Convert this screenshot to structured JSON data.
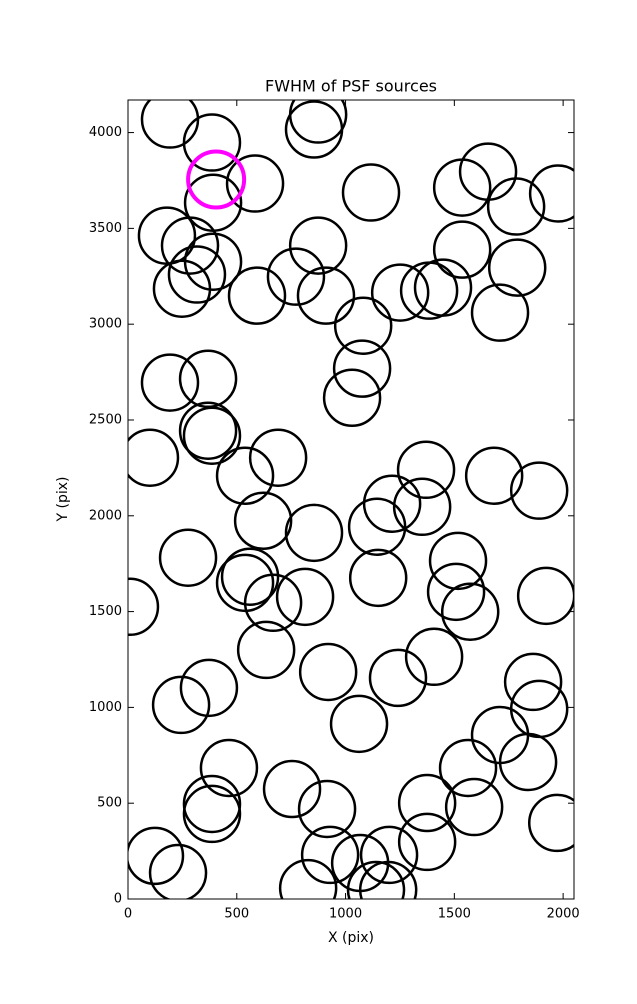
{
  "chart_data": {
    "type": "scatter",
    "title": "FWHM of PSF sources",
    "x_label": "X (pix)",
    "y_label": "Y (pix)",
    "xlim": [
      0,
      2050
    ],
    "ylim": [
      0,
      4170
    ],
    "xticks": [
      0,
      500,
      1000,
      1500,
      2000
    ],
    "yticks": [
      0,
      500,
      1000,
      1500,
      2000,
      2500,
      3000,
      3500,
      4000
    ],
    "series": [
      {
        "color": "#000000",
        "x": [
          193,
          386,
          874,
          855,
          391,
          584,
          1117,
          1536,
          1655,
          1784,
          1977,
          179,
          285,
          391,
          874,
          1536,
          1789,
          317,
          248,
          772,
          593,
          910,
          1251,
          1384,
          1448,
          1710,
          1081,
          193,
          368,
          1076,
          1030,
          368,
          386,
          101,
          690,
          538,
          1370,
          1683,
          1890,
          1214,
          1352,
          621,
          855,
          1145,
          276,
          1517,
          561,
          538,
          814,
          1150,
          1508,
          1573,
          9,
          667,
          1922,
          635,
          920,
          1407,
          1241,
          372,
          244,
          1862,
          1890,
          1062,
          1710,
          1839,
          464,
          1563,
          754,
          915,
          386,
          386,
          1375,
          1591,
          1973,
          124,
          230,
          929,
          1067,
          1200,
          1375,
          828,
          1140,
          1196
        ],
        "values": [
          4068,
          3948,
          4094,
          4016,
          3634,
          3734,
          3687,
          3713,
          3796,
          3614,
          3682,
          3462,
          3410,
          3326,
          3410,
          3389,
          3295,
          3259,
          3185,
          3248,
          3149,
          3149,
          3165,
          3175,
          3191,
          3060,
          2992,
          2695,
          2715,
          2768,
          2616,
          2444,
          2418,
          2303,
          2303,
          2209,
          2240,
          2209,
          2131,
          2063,
          2047,
          1974,
          1911,
          1943,
          1781,
          1765,
          1682,
          1650,
          1577,
          1676,
          1603,
          1499,
          1525,
          1546,
          1582,
          1300,
          1185,
          1264,
          1154,
          1102,
          1013,
          1133,
          992,
          914,
          856,
          715,
          684,
          684,
          574,
          470,
          496,
          444,
          501,
          480,
          397,
          225,
          136,
          230,
          188,
          230,
          298,
          57,
          47,
          47
        ]
      },
      {
        "color": "#ff00ff",
        "x": [
          405
        ],
        "values": [
          3755
        ]
      }
    ]
  }
}
